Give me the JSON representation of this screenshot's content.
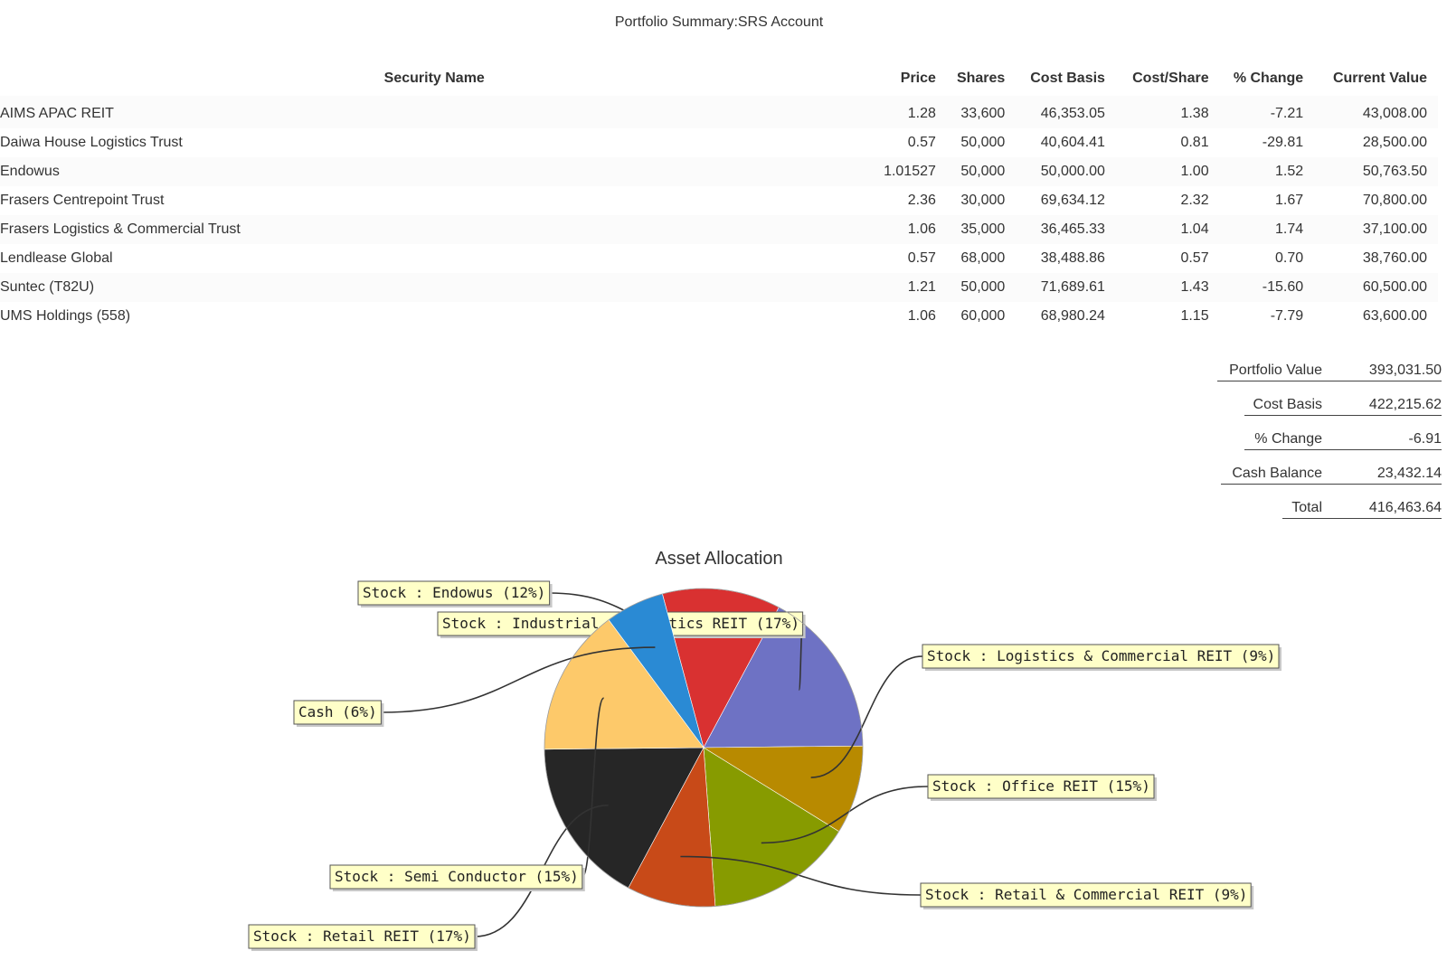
{
  "page": {
    "title": "Portfolio Summary:SRS Account"
  },
  "table": {
    "headers": [
      "Security Name",
      "Price",
      "Shares",
      "Cost Basis",
      "Cost/Share",
      "% Change",
      "Current Value"
    ],
    "rows": [
      [
        "AIMS APAC REIT",
        "1.28",
        "33,600",
        "46,353.05",
        "1.38",
        "-7.21",
        "43,008.00"
      ],
      [
        "Daiwa House Logistics Trust",
        "0.57",
        "50,000",
        "40,604.41",
        "0.81",
        "-29.81",
        "28,500.00"
      ],
      [
        "Endowus",
        "1.01527",
        "50,000",
        "50,000.00",
        "1.00",
        "1.52",
        "50,763.50"
      ],
      [
        "Frasers Centrepoint Trust",
        "2.36",
        "30,000",
        "69,634.12",
        "2.32",
        "1.67",
        "70,800.00"
      ],
      [
        "Frasers Logistics & Commercial Trust",
        "1.06",
        "35,000",
        "36,465.33",
        "1.04",
        "1.74",
        "37,100.00"
      ],
      [
        "Lendlease Global",
        "0.57",
        "68,000",
        "38,488.86",
        "0.57",
        "0.70",
        "38,760.00"
      ],
      [
        "Suntec (T82U)",
        "1.21",
        "50,000",
        "71,689.61",
        "1.43",
        "-15.60",
        "60,500.00"
      ],
      [
        "UMS Holdings (558)",
        "1.06",
        "60,000",
        "68,980.24",
        "1.15",
        "-7.79",
        "63,600.00"
      ]
    ]
  },
  "summary": {
    "portfolio_value_label": "Portfolio Value",
    "portfolio_value": "393,031.50",
    "cost_basis_label": "Cost Basis",
    "cost_basis": "422,215.62",
    "pct_change_label": "% Change",
    "pct_change": "-6.91",
    "cash_balance_label": "Cash Balance",
    "cash_balance": "23,432.14",
    "total_label": "Total",
    "total": "416,463.64"
  },
  "chart_data": {
    "type": "pie",
    "title": "Asset Allocation",
    "slices": [
      {
        "label": "Stock : Endowus (12%)",
        "value": 12,
        "color": "#d93131"
      },
      {
        "label": "Stock : Industrial & Logistics REIT (17%)",
        "value": 17,
        "color": "#6e72c4"
      },
      {
        "label": "Stock : Logistics & Commercial REIT (9%)",
        "value": 9,
        "color": "#b88a00"
      },
      {
        "label": "Stock : Office REIT (15%)",
        "value": 15,
        "color": "#879b00"
      },
      {
        "label": "Stock : Retail & Commercial REIT (9%)",
        "value": 9,
        "color": "#c84a18"
      },
      {
        "label": "Stock : Retail REIT (17%)",
        "value": 17,
        "color": "#262626"
      },
      {
        "label": "Stock : Semi Conductor (15%)",
        "value": 15,
        "color": "#fdc96a"
      },
      {
        "label": "Cash (6%)",
        "value": 6,
        "color": "#2a8ad4"
      }
    ]
  }
}
